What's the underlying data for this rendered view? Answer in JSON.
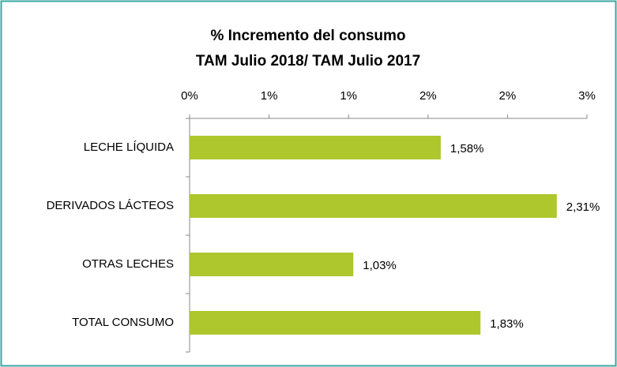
{
  "chart_data": {
    "type": "bar",
    "orientation": "horizontal",
    "title": "% Incremento del consumo",
    "subtitle": "TAM Julio 2018/ TAM Julio 2017",
    "categories": [
      "LECHE LÍQUIDA",
      "DERIVADOS LÁCTEOS",
      "OTRAS LECHES",
      "TOTAL CONSUMO"
    ],
    "values": [
      1.58,
      2.31,
      1.03,
      1.83
    ],
    "value_labels": [
      "1,58%",
      "2,31%",
      "1,03%",
      "1,83%"
    ],
    "color": "#adc72d",
    "xlim": [
      0,
      2.5
    ],
    "xticks": [
      {
        "value": 0,
        "label": "0%"
      },
      {
        "value": 0.5,
        "label": "1%"
      },
      {
        "value": 1,
        "label": "1%"
      },
      {
        "value": 1.5,
        "label": "2%"
      },
      {
        "value": 2,
        "label": "2%"
      },
      {
        "value": 2.5,
        "label": "3%"
      }
    ],
    "grid": false
  }
}
